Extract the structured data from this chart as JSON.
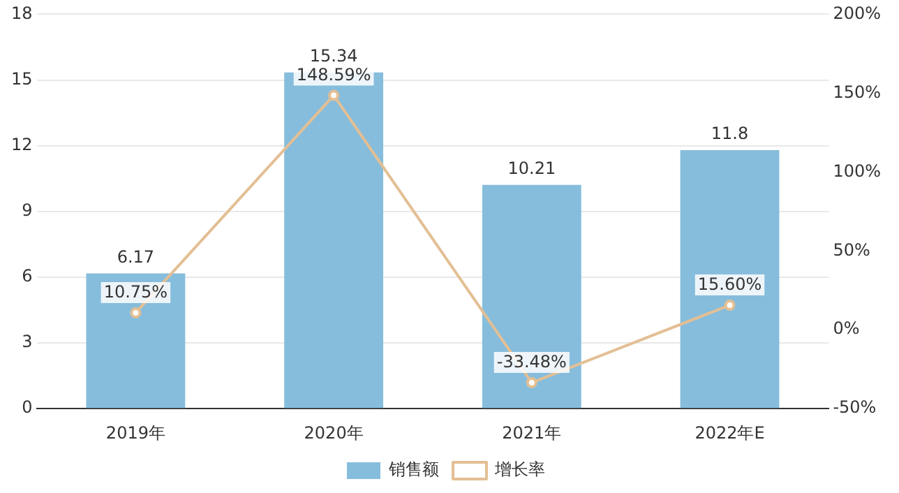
{
  "chart_data": {
    "type": "bar",
    "categories": [
      "2019年",
      "2020年",
      "2021年",
      "2022年E"
    ],
    "series": [
      {
        "name": "销售额",
        "color": "#86bddc",
        "values": [
          6.17,
          15.34,
          10.21,
          11.8
        ],
        "value_labels": [
          "6.17",
          "15.34",
          "10.21",
          "11.8"
        ]
      },
      {
        "name": "增长率",
        "type": "line",
        "axis": "y2",
        "color": "#e3bf94",
        "values": [
          10.75,
          148.59,
          -33.48,
          15.6
        ],
        "value_labels": [
          "10.75%",
          "148.59%",
          "-33.48%",
          "15.60%"
        ]
      }
    ],
    "ylim": [
      0,
      18
    ],
    "yticks": [
      0,
      3,
      6,
      9,
      12,
      15,
      18
    ],
    "y2lim": [
      -50,
      200
    ],
    "y2ticks": [
      {
        "value": -50,
        "label": "-50%"
      },
      {
        "value": 0,
        "label": "0%"
      },
      {
        "value": 50,
        "label": "50%"
      },
      {
        "value": 100,
        "label": "100%"
      },
      {
        "value": 150,
        "label": "150%"
      },
      {
        "value": 200,
        "label": "200%"
      }
    ],
    "grid": "y",
    "legend": "bottom",
    "marker": "circle",
    "line_style": "solid"
  }
}
